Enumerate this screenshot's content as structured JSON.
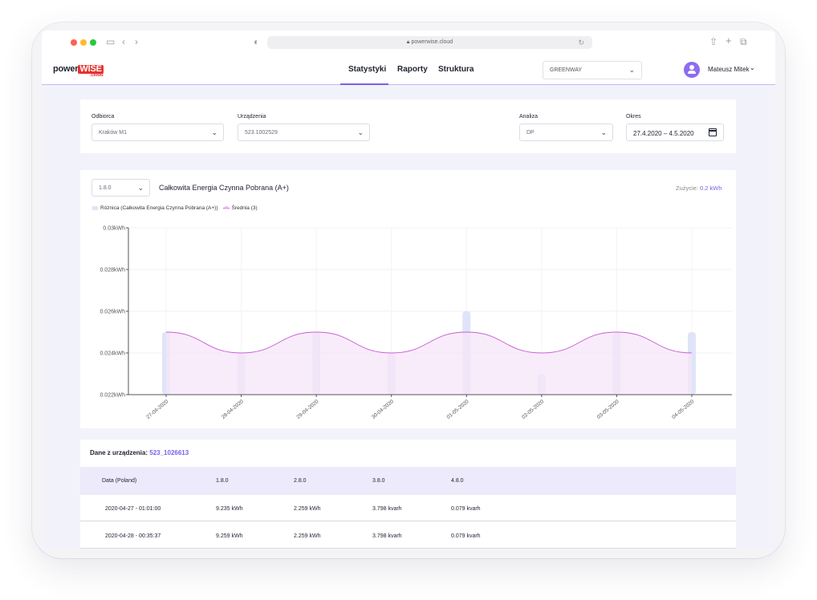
{
  "browser": {
    "url": "powerwise.cloud",
    "colors": {
      "close": "#ff5f57",
      "min": "#febc2e",
      "max": "#28c840"
    }
  },
  "app": {
    "logo": {
      "part1": "power",
      "part2": "WISE",
      "part3": ".cloud"
    },
    "nav": [
      "Statystyki",
      "Raporty",
      "Struktura"
    ],
    "active_nav": "Statystyki",
    "company_select": "GREENWAY",
    "user_name": "Mateusz Mitek",
    "accent": "#7b61e6"
  },
  "filters": {
    "odbiorca": {
      "label": "Odbiorca",
      "value": "Kraków M1"
    },
    "urzadzenia": {
      "label": "Urządzenia",
      "value": "523.1002529"
    },
    "analiza": {
      "label": "Analiza",
      "value": "DP"
    },
    "okres": {
      "label": "Okres",
      "value": "27.4.2020 – 4.5.2020"
    }
  },
  "chart_panel": {
    "register_select": "1.8.0",
    "title": "Całkowita Energia Czynna Pobrana (A+)",
    "usage_label": "Zużycie:",
    "usage_value": "0.2 kWh",
    "legend": [
      "Różnica (Całkowita Energia Czynna Pobrana (A+))",
      "Średnia (3)"
    ]
  },
  "chart_data": {
    "type": "bar",
    "categories": [
      "27-04-2020",
      "28-04-2020",
      "29-04-2020",
      "30-04-2020",
      "01-05-2020",
      "02-05-2020",
      "03-05-2020",
      "04-05-2020"
    ],
    "y_ticks": [
      "0.022kWh",
      "0.024kWh",
      "0.026kWh",
      "0.028kWh",
      "0.03kWh"
    ],
    "ylim": [
      0.022,
      0.03
    ],
    "series": [
      {
        "name": "Różnica (Całkowita Energia Czynna Pobrana (A+))",
        "type": "bar",
        "color": "#dfe4f8",
        "values": [
          0.025,
          0.024,
          0.025,
          0.024,
          0.026,
          0.023,
          0.025,
          0.025
        ]
      },
      {
        "name": "Średnia (3)",
        "type": "area",
        "color": "#c85ed8",
        "fill": "#f7e6f8",
        "values": [
          0.025,
          0.024,
          0.025,
          0.024,
          0.025,
          0.024,
          0.025,
          0.024
        ]
      }
    ]
  },
  "table": {
    "title_label": "Dane z urządzenia:",
    "device": "523_1026613",
    "columns": [
      "Data (Poland)",
      "1.8.0",
      "2.8.0",
      "3.8.0",
      "4.8.0"
    ],
    "rows": [
      [
        "2020-04-27 - 01:01:00",
        "9.235 kWh",
        "2.259 kWh",
        "3.798 kvarh",
        "0.079 kvarh"
      ],
      [
        "2020-04-28 - 00:35:37",
        "9.259 kWh",
        "2.259 kWh",
        "3.798 kvarh",
        "0.079 kvarh"
      ]
    ]
  }
}
